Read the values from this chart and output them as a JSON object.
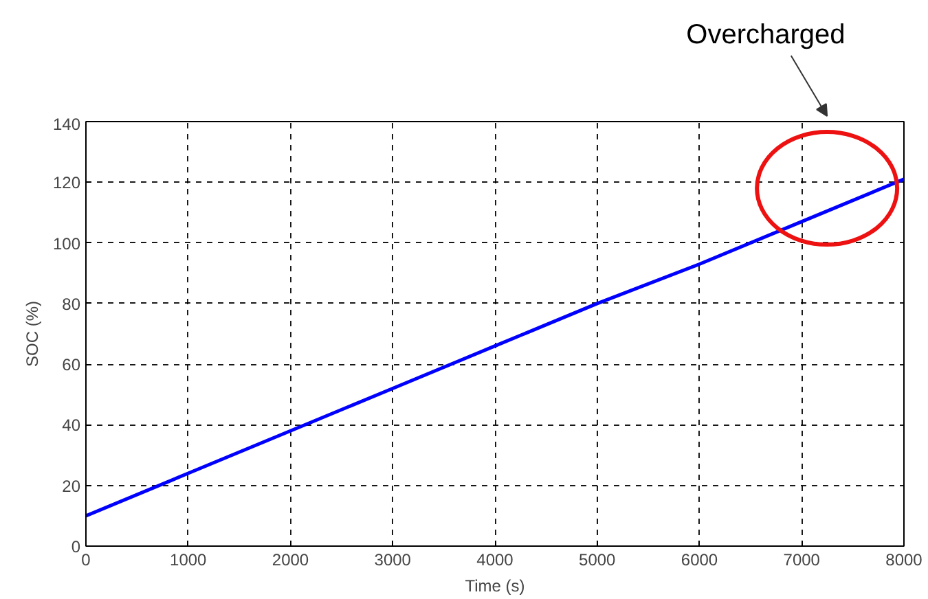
{
  "chart_data": {
    "type": "line",
    "xlabel": "Time (s)",
    "ylabel": "SOC (%)",
    "x": [
      0,
      1000,
      2000,
      3000,
      4000,
      5000,
      6000,
      7000,
      8000
    ],
    "series": [
      {
        "color": "#0000ff",
        "values": [
          10,
          24,
          38,
          52,
          66,
          80,
          93,
          107,
          121
        ]
      }
    ],
    "xlim": [
      0,
      8000
    ],
    "ylim": [
      0,
      140
    ],
    "xticks": [
      0,
      1000,
      2000,
      3000,
      4000,
      5000,
      6000,
      7000,
      8000
    ],
    "yticks": [
      0,
      20,
      40,
      60,
      80,
      100,
      120,
      140
    ],
    "grid": true,
    "line_style": "solid",
    "marker": "none",
    "annotations": [
      "Overcharged"
    ]
  }
}
